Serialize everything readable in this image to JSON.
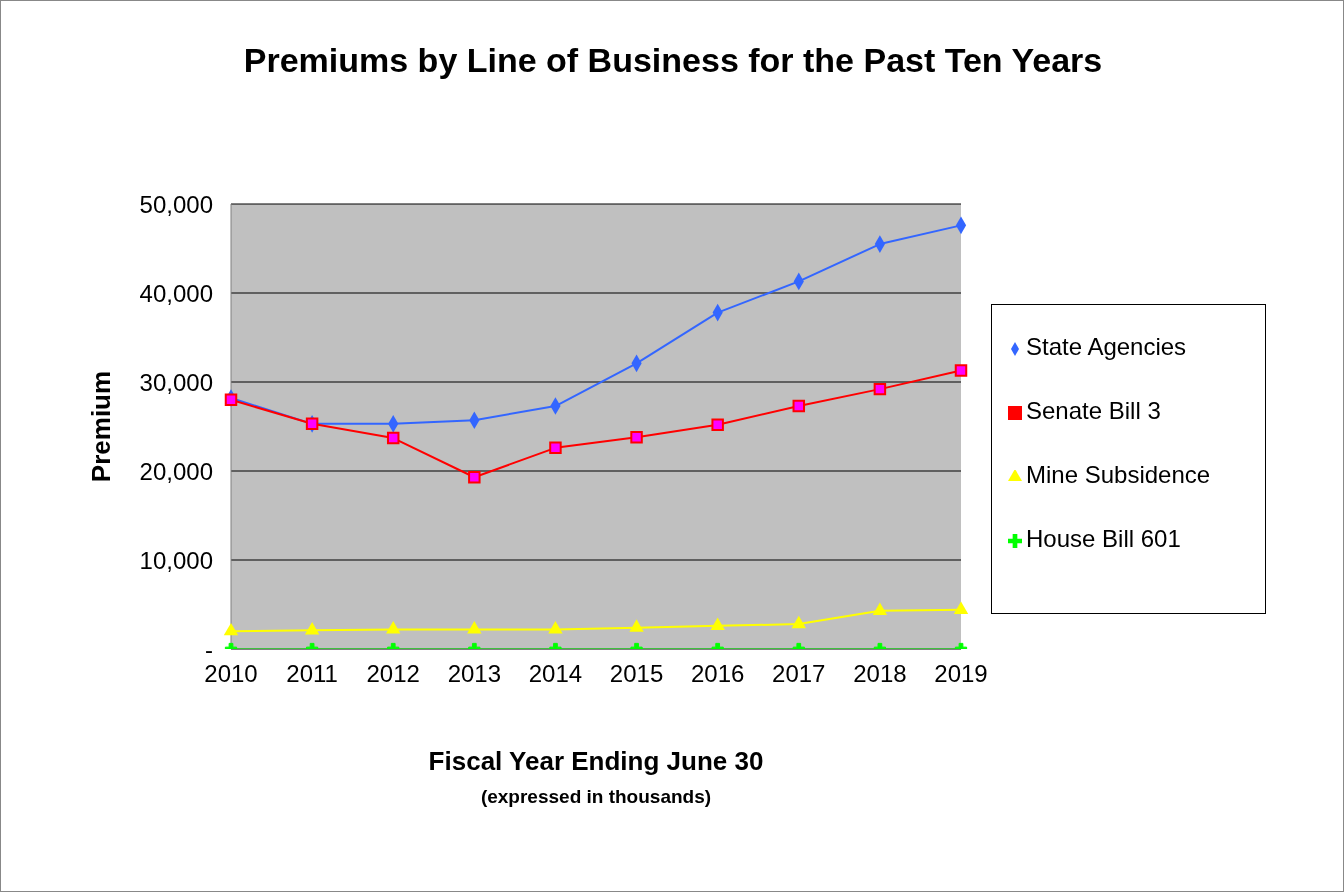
{
  "chart_data": {
    "type": "line",
    "title": "Premiums by Line of Business for the Past Ten Years",
    "xlabel": "Fiscal Year Ending June 30",
    "ylabel": "Premium",
    "annotations": [
      "(expressed in thousands)"
    ],
    "categories": [
      "2010",
      "2011",
      "2012",
      "2013",
      "2014",
      "2015",
      "2016",
      "2017",
      "2018",
      "2019"
    ],
    "series": [
      {
        "name": "State Agencies",
        "color": "#3366ff",
        "marker": "diamond",
        "values": [
          28200.0,
          25300.0,
          25300.0,
          25700.0,
          27300.0,
          32100.0,
          37800.0,
          41300.0,
          45500.0,
          47600.0
        ]
      },
      {
        "name": "Senate Bill 3",
        "color": "#ff0000",
        "marker": "square",
        "values": [
          28000.0,
          25300.0,
          23700.0,
          19300.0,
          22600.0,
          23800.0,
          25200.0,
          27300.0,
          29200.0,
          31300.0
        ]
      },
      {
        "name": "Mine Subsidence",
        "color": "#ffff00",
        "marker": "triangle",
        "values": [
          2000.0,
          2100.0,
          2200.0,
          2200.0,
          2200.0,
          2400.0,
          2600.0,
          2800.0,
          4300.0,
          4400.0
        ]
      },
      {
        "name": "House Bill 601",
        "color": "#00ff00",
        "marker": "cross",
        "values": [
          0,
          0,
          0,
          0,
          0,
          0,
          0,
          0,
          0,
          0
        ]
      }
    ],
    "ylim": [
      0,
      50000
    ],
    "yticks": [
      {
        "value": 0,
        "label": "-"
      },
      {
        "value": 10000,
        "label": "10,000"
      },
      {
        "value": 20000,
        "label": "20,000"
      },
      {
        "value": 30000,
        "label": "30,000"
      },
      {
        "value": 40000,
        "label": "40,000"
      },
      {
        "value": 50000,
        "label": "50,000"
      }
    ],
    "grid": "y",
    "legend": "right"
  }
}
